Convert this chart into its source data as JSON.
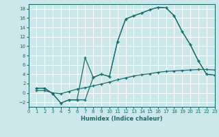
{
  "xlabel": "Humidex (Indice chaleur)",
  "bg_color": "#cce8ea",
  "grid_color": "#ffffff",
  "line_color": "#1a6b6b",
  "line1_x": [
    1,
    2,
    3,
    4,
    5,
    6,
    7,
    8,
    9,
    10,
    11,
    12,
    13,
    14,
    15,
    16,
    17,
    18,
    19,
    20,
    21,
    22,
    23
  ],
  "line1_y": [
    1.0,
    1.0,
    -0.2,
    -2.2,
    -1.5,
    -1.5,
    -1.5,
    3.3,
    4.0,
    3.5,
    11.0,
    15.8,
    16.5,
    17.1,
    17.8,
    18.3,
    18.2,
    16.5,
    13.1,
    10.3,
    6.8,
    4.0,
    3.8
  ],
  "line2_x": [
    1,
    2,
    3,
    4,
    5,
    6,
    7,
    8,
    9,
    10,
    11,
    12,
    13,
    14,
    15,
    16,
    17,
    18,
    19,
    20,
    21,
    22,
    23
  ],
  "line2_y": [
    1.0,
    1.0,
    -0.2,
    -2.2,
    -1.5,
    -1.5,
    7.5,
    3.3,
    4.0,
    3.5,
    11.0,
    15.8,
    16.5,
    17.1,
    17.8,
    18.3,
    18.2,
    16.5,
    13.1,
    10.3,
    6.8,
    4.0,
    3.8
  ],
  "line3_x": [
    1,
    2,
    3,
    4,
    5,
    6,
    7,
    8,
    9,
    10,
    11,
    12,
    13,
    14,
    15,
    16,
    17,
    18,
    19,
    20,
    21,
    22,
    23
  ],
  "line3_y": [
    0.5,
    0.5,
    0.0,
    -0.2,
    0.3,
    0.8,
    1.1,
    1.5,
    1.9,
    2.3,
    2.8,
    3.2,
    3.6,
    3.9,
    4.1,
    4.4,
    4.6,
    4.7,
    4.8,
    4.9,
    5.0,
    5.0,
    4.9
  ],
  "xlim": [
    0,
    23
  ],
  "ylim": [
    -3,
    19
  ],
  "yticks": [
    -2,
    0,
    2,
    4,
    6,
    8,
    10,
    12,
    14,
    16,
    18
  ],
  "xticks": [
    0,
    1,
    2,
    3,
    4,
    5,
    6,
    7,
    8,
    9,
    10,
    11,
    12,
    13,
    14,
    15,
    16,
    17,
    18,
    19,
    20,
    21,
    22,
    23
  ]
}
